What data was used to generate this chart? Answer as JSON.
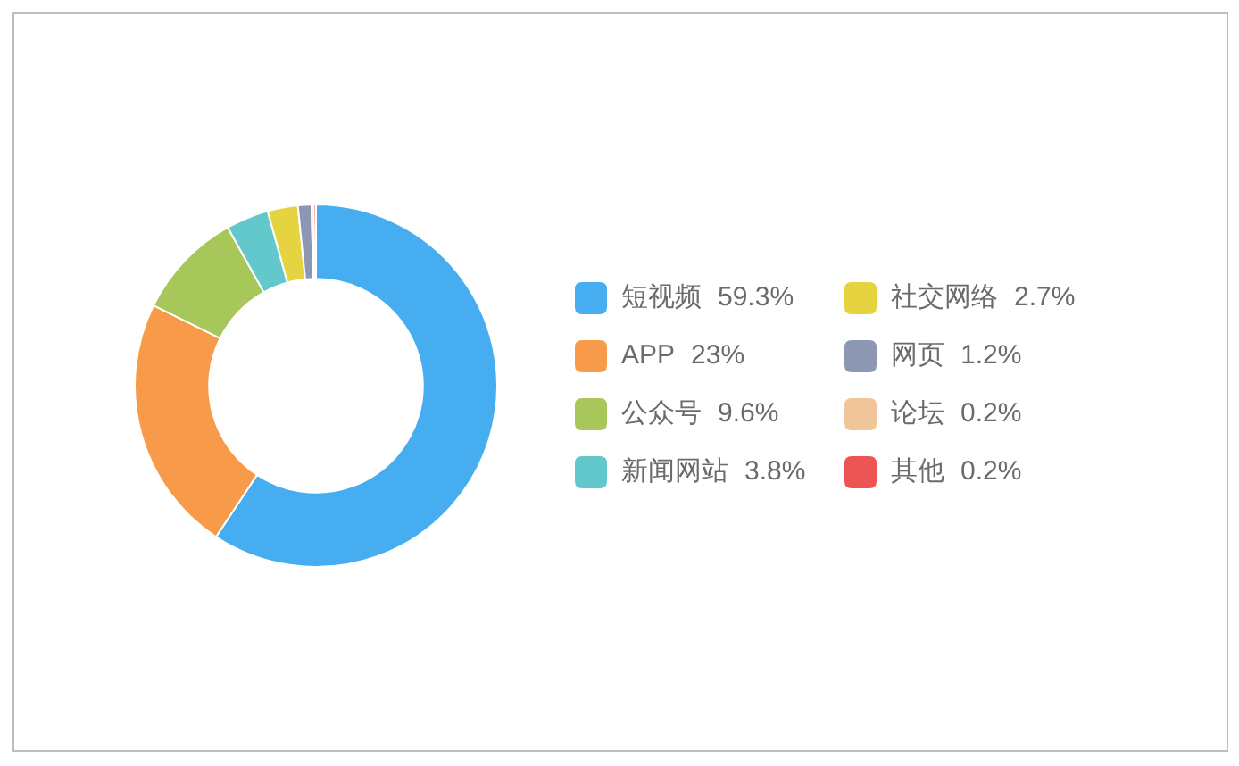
{
  "chart_data": {
    "type": "donut",
    "categories": [
      "短视频",
      "APP",
      "公众号",
      "新闻网站",
      "社交网络",
      "网页",
      "论坛",
      "其他"
    ],
    "values": [
      59.3,
      23,
      9.6,
      3.8,
      2.7,
      1.2,
      0.2,
      0.2
    ],
    "value_labels": [
      "59.3%",
      "23%",
      "9.6%",
      "3.8%",
      "2.7%",
      "1.2%",
      "0.2%",
      "0.2%"
    ],
    "colors": [
      "#46adf0",
      "#f79a4a",
      "#a8c75a",
      "#62c8cb",
      "#e5d43f",
      "#8c98b3",
      "#f0c599",
      "#ed5555"
    ],
    "legend": "right"
  }
}
